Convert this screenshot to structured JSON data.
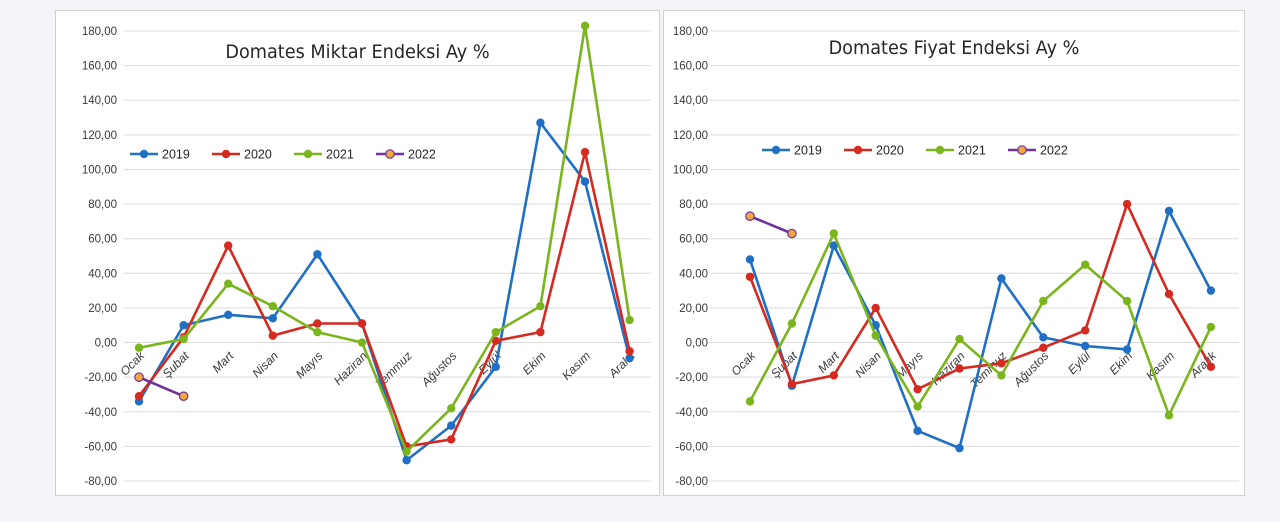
{
  "chart_data": [
    {
      "type": "line",
      "title": "Domates Miktar Endeksi Ay  %",
      "categories": [
        "Ocak",
        "Şubat",
        "Mart",
        "Nisan",
        "Mayıs",
        "Haziran",
        "Temmuz",
        "Ağustos",
        "Eylül",
        "Ekim",
        "Kasım",
        "Aralık"
      ],
      "ylim": [
        -80,
        180
      ],
      "yticks": [
        "-80,00",
        "-60,00",
        "-40,00",
        "-20,00",
        "0,00",
        "20,00",
        "40,00",
        "60,00",
        "80,00",
        "100,00",
        "120,00",
        "140,00",
        "160,00",
        "180,00"
      ],
      "legend": [
        "2019",
        "2020",
        "2021",
        "2022"
      ],
      "series": [
        {
          "name": "2019",
          "color": "#1f6fc4",
          "values": [
            -34,
            10,
            16,
            14,
            51,
            11,
            -68,
            -48,
            -14,
            127,
            93,
            -9
          ]
        },
        {
          "name": "2020",
          "color": "#d42a20",
          "values": [
            -31,
            3,
            56,
            4,
            11,
            11,
            -60,
            -56,
            1,
            6,
            110,
            -5
          ]
        },
        {
          "name": "2021",
          "color": "#7ab51d",
          "values": [
            -3,
            2,
            34,
            21,
            6,
            0,
            -63,
            -38,
            6,
            21,
            183,
            13
          ]
        },
        {
          "name": "2022",
          "color": "#7030a0",
          "marker_color": "#f2a93b",
          "values": [
            -20,
            -31,
            null,
            null,
            null,
            null,
            null,
            null,
            null,
            null,
            null,
            null
          ]
        }
      ]
    },
    {
      "type": "line",
      "title": "Domates Fiyat Endeksi Ay %",
      "categories": [
        "Ocak",
        "Şubat",
        "Mart",
        "Nisan",
        "Mayıs",
        "Haziran",
        "Temmuz",
        "Ağustos",
        "Eylül",
        "Ekim",
        "Kasım",
        "Aralık"
      ],
      "ylim": [
        -80,
        180
      ],
      "yticks": [
        "-80,00",
        "-60,00",
        "-40,00",
        "-20,00",
        "0,00",
        "20,00",
        "40,00",
        "60,00",
        "80,00",
        "100,00",
        "120,00",
        "140,00",
        "160,00",
        "180,00"
      ],
      "legend": [
        "2019",
        "2020",
        "2021",
        "2022"
      ],
      "series": [
        {
          "name": "2019",
          "color": "#1f6fc4",
          "values": [
            48,
            -25,
            56,
            10,
            -51,
            -61,
            37,
            3,
            -2,
            -4,
            76,
            30
          ]
        },
        {
          "name": "2020",
          "color": "#d42a20",
          "values": [
            38,
            -24,
            -19,
            20,
            -27,
            -15,
            -12,
            -3,
            7,
            80,
            28,
            -14
          ]
        },
        {
          "name": "2021",
          "color": "#7ab51d",
          "values": [
            -34,
            11,
            63,
            4,
            -37,
            2,
            -19,
            24,
            45,
            24,
            -42,
            9
          ]
        },
        {
          "name": "2022",
          "color": "#7030a0",
          "marker_color": "#f2a93b",
          "values": [
            73,
            63,
            null,
            null,
            null,
            null,
            null,
            null,
            null,
            null,
            null,
            null
          ]
        }
      ]
    }
  ]
}
